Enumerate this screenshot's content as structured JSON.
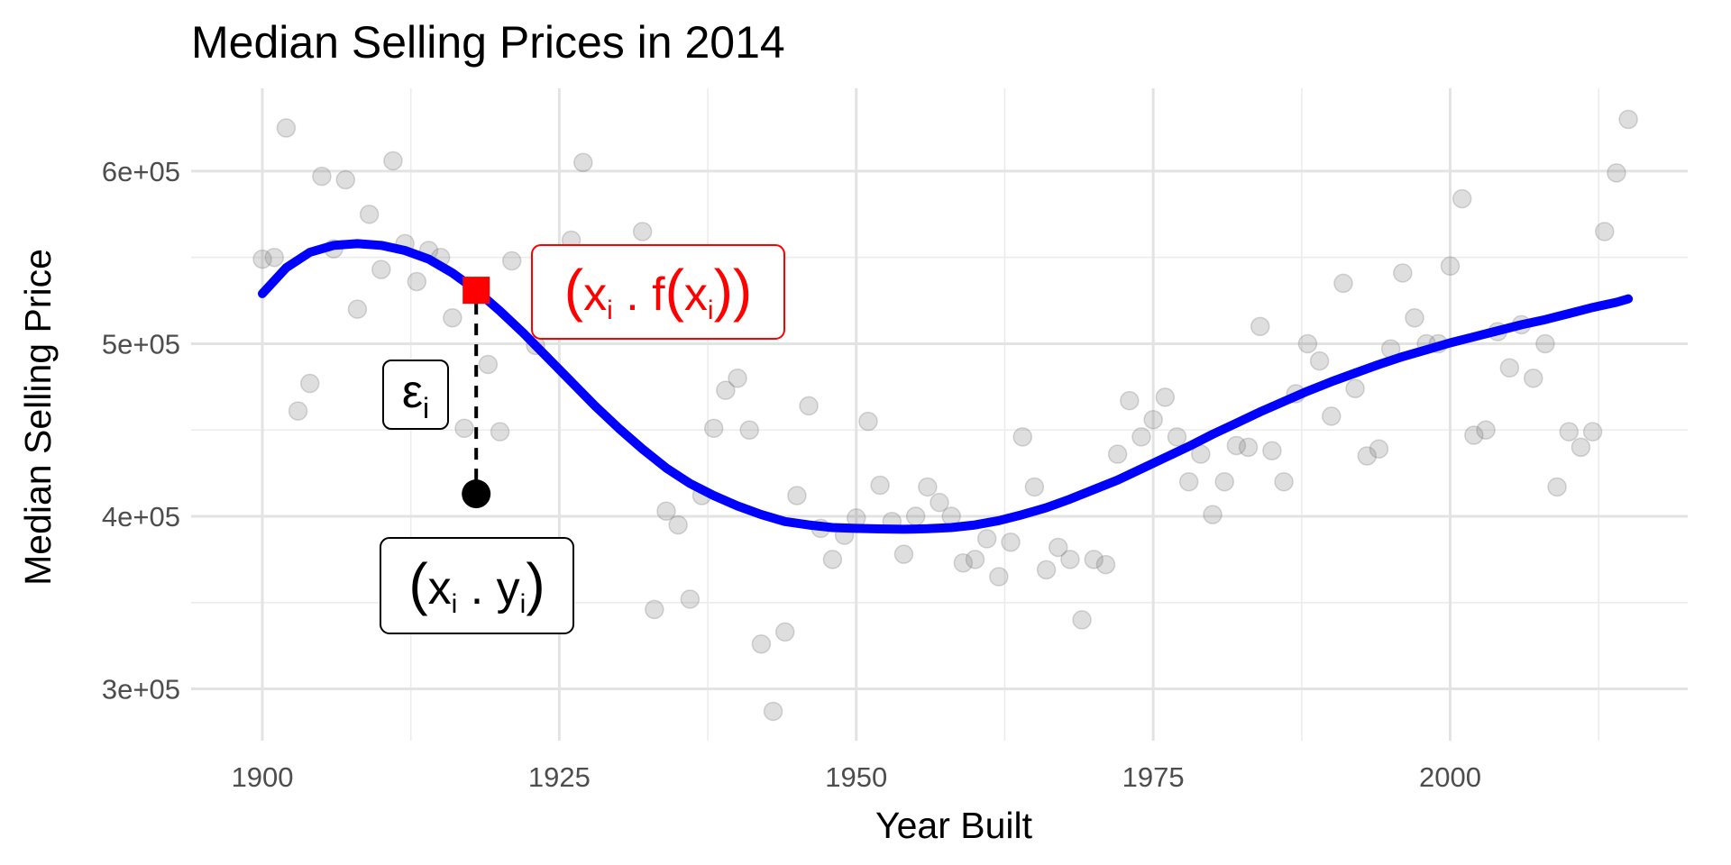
{
  "chart_data": {
    "type": "scatter",
    "title": "Median Selling Prices in 2014",
    "xlabel": "Year Built",
    "ylabel": "Median Selling Price",
    "xlim": [
      1894,
      2020
    ],
    "ylim": [
      270000,
      648000
    ],
    "x_ticks": [
      1900,
      1925,
      1950,
      1975,
      2000
    ],
    "x_tick_labels": [
      "1900",
      "1925",
      "1950",
      "1975",
      "2000"
    ],
    "x_minor_ticks": [
      1912.5,
      1937.5,
      1962.5,
      1987.5,
      2012.5
    ],
    "y_ticks": [
      300000,
      400000,
      500000,
      600000
    ],
    "y_tick_labels": [
      "3e+05",
      "4e+05",
      "5e+05",
      "6e+05"
    ],
    "y_minor_ticks": [
      350000,
      450000,
      550000
    ],
    "grid": true,
    "series": [
      {
        "name": "observations",
        "type": "scatter",
        "color": "#7f7f7f",
        "points": [
          [
            1900,
            549000
          ],
          [
            1901,
            550000
          ],
          [
            1902,
            625000
          ],
          [
            1903,
            461000
          ],
          [
            1904,
            477000
          ],
          [
            1905,
            597000
          ],
          [
            1906,
            555000
          ],
          [
            1907,
            595000
          ],
          [
            1908,
            520000
          ],
          [
            1909,
            575000
          ],
          [
            1910,
            543000
          ],
          [
            1911,
            606000
          ],
          [
            1912,
            558000
          ],
          [
            1913,
            536000
          ],
          [
            1914,
            554000
          ],
          [
            1915,
            550000
          ],
          [
            1916,
            515000
          ],
          [
            1917,
            451000
          ],
          [
            1919,
            488000
          ],
          [
            1920,
            449000
          ],
          [
            1921,
            548000
          ],
          [
            1923,
            499000
          ],
          [
            1926,
            560000
          ],
          [
            1927,
            605000
          ],
          [
            1932,
            565000
          ],
          [
            1933,
            346000
          ],
          [
            1934,
            403000
          ],
          [
            1935,
            395000
          ],
          [
            1936,
            352000
          ],
          [
            1937,
            412000
          ],
          [
            1938,
            451000
          ],
          [
            1939,
            473000
          ],
          [
            1940,
            480000
          ],
          [
            1941,
            450000
          ],
          [
            1942,
            326000
          ],
          [
            1943,
            287000
          ],
          [
            1944,
            333000
          ],
          [
            1945,
            412000
          ],
          [
            1946,
            464000
          ],
          [
            1947,
            393000
          ],
          [
            1948,
            375000
          ],
          [
            1949,
            389000
          ],
          [
            1950,
            399000
          ],
          [
            1951,
            455000
          ],
          [
            1952,
            418000
          ],
          [
            1953,
            397000
          ],
          [
            1954,
            378000
          ],
          [
            1955,
            400000
          ],
          [
            1956,
            417000
          ],
          [
            1957,
            408000
          ],
          [
            1958,
            400000
          ],
          [
            1959,
            373000
          ],
          [
            1960,
            375000
          ],
          [
            1961,
            387000
          ],
          [
            1962,
            365000
          ],
          [
            1963,
            385000
          ],
          [
            1964,
            446000
          ],
          [
            1965,
            417000
          ],
          [
            1966,
            369000
          ],
          [
            1967,
            382000
          ],
          [
            1968,
            375000
          ],
          [
            1969,
            340000
          ],
          [
            1970,
            375000
          ],
          [
            1971,
            372000
          ],
          [
            1972,
            436000
          ],
          [
            1973,
            467000
          ],
          [
            1974,
            446000
          ],
          [
            1975,
            456000
          ],
          [
            1976,
            469000
          ],
          [
            1977,
            446000
          ],
          [
            1978,
            420000
          ],
          [
            1979,
            436000
          ],
          [
            1980,
            401000
          ],
          [
            1981,
            420000
          ],
          [
            1982,
            441000
          ],
          [
            1983,
            440000
          ],
          [
            1984,
            510000
          ],
          [
            1985,
            438000
          ],
          [
            1986,
            420000
          ],
          [
            1987,
            471000
          ],
          [
            1988,
            500000
          ],
          [
            1989,
            490000
          ],
          [
            1990,
            458000
          ],
          [
            1991,
            535000
          ],
          [
            1992,
            474000
          ],
          [
            1993,
            435000
          ],
          [
            1994,
            439000
          ],
          [
            1995,
            497000
          ],
          [
            1996,
            541000
          ],
          [
            1997,
            515000
          ],
          [
            1998,
            500000
          ],
          [
            1999,
            500000
          ],
          [
            2000,
            545000
          ],
          [
            2001,
            584000
          ],
          [
            2002,
            447000
          ],
          [
            2003,
            450000
          ],
          [
            2004,
            507000
          ],
          [
            2005,
            486000
          ],
          [
            2006,
            511000
          ],
          [
            2007,
            480000
          ],
          [
            2008,
            500000
          ],
          [
            2009,
            417000
          ],
          [
            2010,
            449000
          ],
          [
            2011,
            440000
          ],
          [
            2012,
            449000
          ],
          [
            2013,
            565000
          ],
          [
            2014,
            599000
          ],
          [
            2015,
            630000
          ]
        ]
      },
      {
        "name": "fitted",
        "type": "line",
        "color": "#0000ff",
        "points": [
          [
            1900,
            529000
          ],
          [
            1902,
            544000
          ],
          [
            1904,
            553000
          ],
          [
            1906,
            557000
          ],
          [
            1908,
            558000
          ],
          [
            1910,
            557000
          ],
          [
            1912,
            554000
          ],
          [
            1914,
            549000
          ],
          [
            1916,
            541000
          ],
          [
            1918,
            531000
          ],
          [
            1920,
            519000
          ],
          [
            1922,
            506000
          ],
          [
            1924,
            492000
          ],
          [
            1926,
            478000
          ],
          [
            1928,
            464000
          ],
          [
            1930,
            451000
          ],
          [
            1932,
            439000
          ],
          [
            1934,
            428000
          ],
          [
            1936,
            419000
          ],
          [
            1938,
            412000
          ],
          [
            1940,
            406000
          ],
          [
            1942,
            401000
          ],
          [
            1944,
            397000
          ],
          [
            1946,
            395000
          ],
          [
            1948,
            393500
          ],
          [
            1950,
            393000
          ],
          [
            1952,
            392700
          ],
          [
            1954,
            392500
          ],
          [
            1956,
            392800
          ],
          [
            1958,
            393500
          ],
          [
            1960,
            395000
          ],
          [
            1962,
            397500
          ],
          [
            1964,
            401000
          ],
          [
            1966,
            405000
          ],
          [
            1968,
            410000
          ],
          [
            1970,
            415500
          ],
          [
            1972,
            421000
          ],
          [
            1974,
            427500
          ],
          [
            1976,
            434000
          ],
          [
            1978,
            440500
          ],
          [
            1980,
            447500
          ],
          [
            1982,
            454000
          ],
          [
            1984,
            460500
          ],
          [
            1986,
            466500
          ],
          [
            1988,
            472500
          ],
          [
            1990,
            478000
          ],
          [
            1992,
            483000
          ],
          [
            1994,
            488000
          ],
          [
            1996,
            492500
          ],
          [
            1998,
            496500
          ],
          [
            2000,
            500500
          ],
          [
            2002,
            504000
          ],
          [
            2004,
            507500
          ],
          [
            2006,
            511000
          ],
          [
            2008,
            514000
          ],
          [
            2010,
            517500
          ],
          [
            2012,
            521000
          ],
          [
            2014,
            524000
          ],
          [
            2015,
            526000
          ]
        ]
      }
    ],
    "annotations": {
      "residual_color": "#000000",
      "fitted_color": "#ff0000",
      "fitted_point": {
        "x": 1918,
        "y": 531000,
        "shape": "square",
        "color": "#ff0000",
        "label": {
          "open": "(",
          "base": "x",
          "sub": "i",
          "mid": " . f",
          "open2": "(",
          "base2": "x",
          "sub2": "i",
          "close2": ")",
          "close": ")"
        }
      },
      "observed_point": {
        "x": 1918,
        "y": 413000,
        "shape": "circle",
        "color": "#000000",
        "label": {
          "open": "(",
          "base": "x",
          "sub": "i",
          "mid": " . ",
          "base2": "y",
          "sub2": "i",
          "close": ")"
        }
      },
      "residual": {
        "x": 1918,
        "y_from": 531000,
        "y_to": 413000,
        "style": "dashed",
        "label": {
          "base": "ε",
          "sub": "i"
        }
      }
    }
  }
}
